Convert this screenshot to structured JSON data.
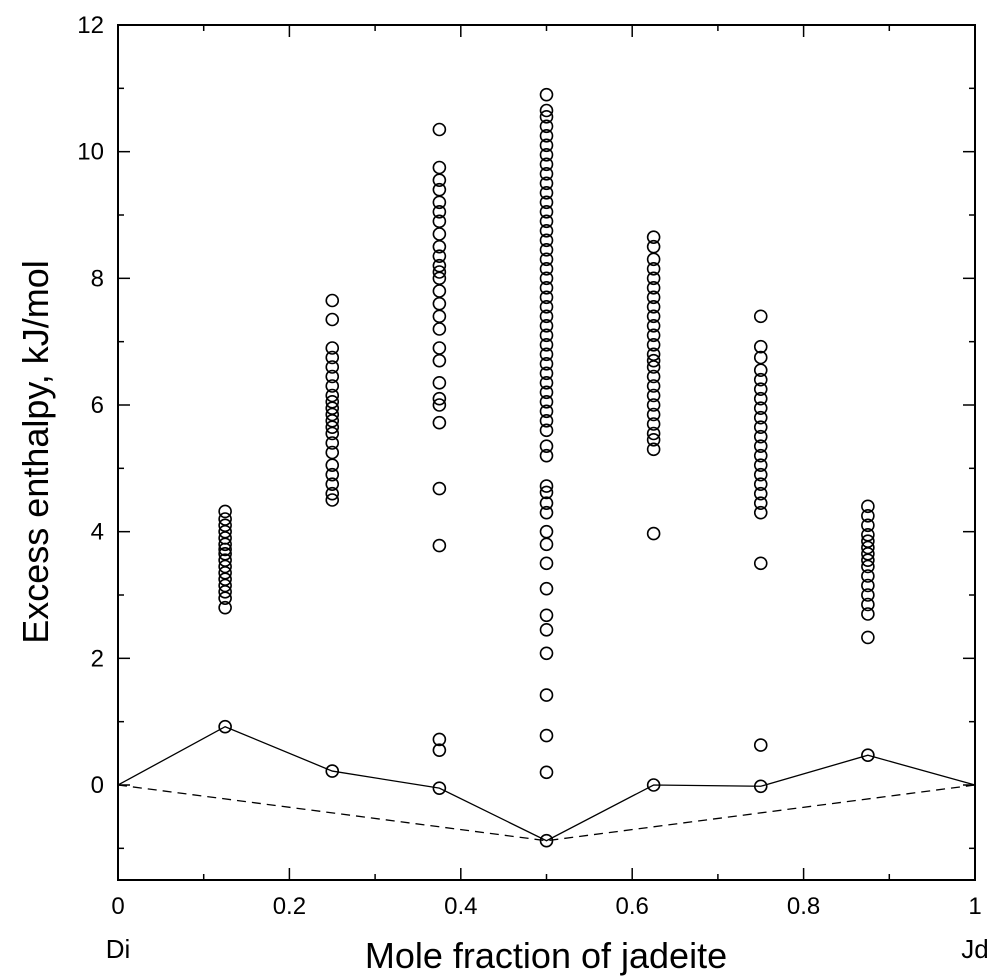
{
  "chart_data": {
    "type": "scatter",
    "title": "",
    "xlabel": "Mole fraction of jadeite",
    "ylabel": "Excess enthalpy, kJ/mol",
    "xlim": [
      0,
      1
    ],
    "ylim": [
      -1.5,
      12
    ],
    "x_ticks": [
      0,
      0.2,
      0.4,
      0.6,
      0.8,
      1
    ],
    "x_tick_labels": [
      "0",
      "0.2",
      "0.4",
      "0.6",
      "0.8",
      "1"
    ],
    "y_ticks": [
      0,
      2,
      4,
      6,
      8,
      10,
      12
    ],
    "y_tick_labels": [
      "0",
      "2",
      "4",
      "6",
      "8",
      "10",
      "12"
    ],
    "end_labels": {
      "left": "Di",
      "right": "Jd"
    },
    "grid": false,
    "legend": "none",
    "series": [
      {
        "style": "open-circle",
        "points": [
          [
            0.125,
            0.92
          ],
          [
            0.125,
            2.8
          ],
          [
            0.125,
            2.95
          ],
          [
            0.125,
            3.05
          ],
          [
            0.125,
            3.15
          ],
          [
            0.125,
            3.25
          ],
          [
            0.125,
            3.35
          ],
          [
            0.125,
            3.45
          ],
          [
            0.125,
            3.55
          ],
          [
            0.125,
            3.65
          ],
          [
            0.125,
            3.72
          ],
          [
            0.125,
            3.8
          ],
          [
            0.125,
            3.9
          ],
          [
            0.125,
            4.0
          ],
          [
            0.125,
            4.1
          ],
          [
            0.125,
            4.2
          ],
          [
            0.125,
            4.32
          ],
          [
            0.25,
            0.22
          ],
          [
            0.25,
            4.5
          ],
          [
            0.25,
            4.6
          ],
          [
            0.25,
            4.75
          ],
          [
            0.25,
            4.9
          ],
          [
            0.25,
            5.05
          ],
          [
            0.25,
            5.25
          ],
          [
            0.25,
            5.4
          ],
          [
            0.25,
            5.55
          ],
          [
            0.25,
            5.65
          ],
          [
            0.25,
            5.75
          ],
          [
            0.25,
            5.85
          ],
          [
            0.25,
            5.95
          ],
          [
            0.25,
            6.05
          ],
          [
            0.25,
            6.15
          ],
          [
            0.25,
            6.3
          ],
          [
            0.25,
            6.45
          ],
          [
            0.25,
            6.6
          ],
          [
            0.25,
            6.75
          ],
          [
            0.25,
            6.9
          ],
          [
            0.25,
            7.35
          ],
          [
            0.25,
            7.65
          ],
          [
            0.375,
            -0.05
          ],
          [
            0.375,
            0.55
          ],
          [
            0.375,
            0.72
          ],
          [
            0.375,
            3.78
          ],
          [
            0.375,
            4.68
          ],
          [
            0.375,
            5.72
          ],
          [
            0.375,
            6.0
          ],
          [
            0.375,
            6.1
          ],
          [
            0.375,
            6.35
          ],
          [
            0.375,
            6.7
          ],
          [
            0.375,
            6.9
          ],
          [
            0.375,
            7.2
          ],
          [
            0.375,
            7.4
          ],
          [
            0.375,
            7.6
          ],
          [
            0.375,
            7.8
          ],
          [
            0.375,
            8.0
          ],
          [
            0.375,
            8.1
          ],
          [
            0.375,
            8.2
          ],
          [
            0.375,
            8.35
          ],
          [
            0.375,
            8.5
          ],
          [
            0.375,
            8.7
          ],
          [
            0.375,
            8.9
          ],
          [
            0.375,
            9.05
          ],
          [
            0.375,
            9.2
          ],
          [
            0.375,
            9.4
          ],
          [
            0.375,
            9.55
          ],
          [
            0.375,
            9.75
          ],
          [
            0.375,
            10.35
          ],
          [
            0.5,
            -0.88
          ],
          [
            0.5,
            0.2
          ],
          [
            0.5,
            0.78
          ],
          [
            0.5,
            1.42
          ],
          [
            0.5,
            2.08
          ],
          [
            0.5,
            2.45
          ],
          [
            0.5,
            2.68
          ],
          [
            0.5,
            3.1
          ],
          [
            0.5,
            3.5
          ],
          [
            0.5,
            3.8
          ],
          [
            0.5,
            4.0
          ],
          [
            0.5,
            4.3
          ],
          [
            0.5,
            4.45
          ],
          [
            0.5,
            4.62
          ],
          [
            0.5,
            4.72
          ],
          [
            0.5,
            5.2
          ],
          [
            0.5,
            5.35
          ],
          [
            0.5,
            5.6
          ],
          [
            0.5,
            5.75
          ],
          [
            0.5,
            5.9
          ],
          [
            0.5,
            6.05
          ],
          [
            0.5,
            6.2
          ],
          [
            0.5,
            6.35
          ],
          [
            0.5,
            6.5
          ],
          [
            0.5,
            6.65
          ],
          [
            0.5,
            6.8
          ],
          [
            0.5,
            6.95
          ],
          [
            0.5,
            7.1
          ],
          [
            0.5,
            7.25
          ],
          [
            0.5,
            7.4
          ],
          [
            0.5,
            7.55
          ],
          [
            0.5,
            7.7
          ],
          [
            0.5,
            7.85
          ],
          [
            0.5,
            8.0
          ],
          [
            0.5,
            8.15
          ],
          [
            0.5,
            8.3
          ],
          [
            0.5,
            8.45
          ],
          [
            0.5,
            8.6
          ],
          [
            0.5,
            8.75
          ],
          [
            0.5,
            8.9
          ],
          [
            0.5,
            9.05
          ],
          [
            0.5,
            9.2
          ],
          [
            0.5,
            9.35
          ],
          [
            0.5,
            9.5
          ],
          [
            0.5,
            9.65
          ],
          [
            0.5,
            9.8
          ],
          [
            0.5,
            9.95
          ],
          [
            0.5,
            10.1
          ],
          [
            0.5,
            10.25
          ],
          [
            0.5,
            10.4
          ],
          [
            0.5,
            10.55
          ],
          [
            0.5,
            10.65
          ],
          [
            0.5,
            10.9
          ],
          [
            0.625,
            0.0
          ],
          [
            0.625,
            3.97
          ],
          [
            0.625,
            5.3
          ],
          [
            0.625,
            5.45
          ],
          [
            0.625,
            5.55
          ],
          [
            0.625,
            5.7
          ],
          [
            0.625,
            5.85
          ],
          [
            0.625,
            6.0
          ],
          [
            0.625,
            6.15
          ],
          [
            0.625,
            6.3
          ],
          [
            0.625,
            6.45
          ],
          [
            0.625,
            6.6
          ],
          [
            0.625,
            6.7
          ],
          [
            0.625,
            6.8
          ],
          [
            0.625,
            6.95
          ],
          [
            0.625,
            7.1
          ],
          [
            0.625,
            7.25
          ],
          [
            0.625,
            7.4
          ],
          [
            0.625,
            7.55
          ],
          [
            0.625,
            7.7
          ],
          [
            0.625,
            7.85
          ],
          [
            0.625,
            8.0
          ],
          [
            0.625,
            8.15
          ],
          [
            0.625,
            8.3
          ],
          [
            0.625,
            8.5
          ],
          [
            0.625,
            8.65
          ],
          [
            0.75,
            -0.02
          ],
          [
            0.75,
            0.63
          ],
          [
            0.75,
            3.5
          ],
          [
            0.75,
            4.3
          ],
          [
            0.75,
            4.45
          ],
          [
            0.75,
            4.6
          ],
          [
            0.75,
            4.75
          ],
          [
            0.75,
            4.9
          ],
          [
            0.75,
            5.05
          ],
          [
            0.75,
            5.2
          ],
          [
            0.75,
            5.35
          ],
          [
            0.75,
            5.5
          ],
          [
            0.75,
            5.65
          ],
          [
            0.75,
            5.8
          ],
          [
            0.75,
            5.95
          ],
          [
            0.75,
            6.1
          ],
          [
            0.75,
            6.25
          ],
          [
            0.75,
            6.4
          ],
          [
            0.75,
            6.55
          ],
          [
            0.75,
            6.75
          ],
          [
            0.75,
            6.92
          ],
          [
            0.75,
            7.4
          ],
          [
            0.875,
            0.47
          ],
          [
            0.875,
            2.33
          ],
          [
            0.875,
            2.7
          ],
          [
            0.875,
            2.85
          ],
          [
            0.875,
            3.0
          ],
          [
            0.875,
            3.15
          ],
          [
            0.875,
            3.3
          ],
          [
            0.875,
            3.45
          ],
          [
            0.875,
            3.55
          ],
          [
            0.875,
            3.65
          ],
          [
            0.875,
            3.75
          ],
          [
            0.875,
            3.85
          ],
          [
            0.875,
            3.95
          ],
          [
            0.875,
            4.1
          ],
          [
            0.875,
            4.25
          ],
          [
            0.875,
            4.4
          ]
        ]
      },
      {
        "style": "solid-line",
        "points": [
          [
            0,
            0
          ],
          [
            0.125,
            0.92
          ],
          [
            0.25,
            0.22
          ],
          [
            0.375,
            -0.05
          ],
          [
            0.5,
            -0.88
          ],
          [
            0.625,
            0.0
          ],
          [
            0.75,
            -0.02
          ],
          [
            0.875,
            0.47
          ],
          [
            1,
            0
          ]
        ]
      },
      {
        "style": "dashed-line",
        "points": [
          [
            0,
            0
          ],
          [
            0.5,
            -0.88
          ],
          [
            1,
            0
          ]
        ]
      }
    ]
  }
}
